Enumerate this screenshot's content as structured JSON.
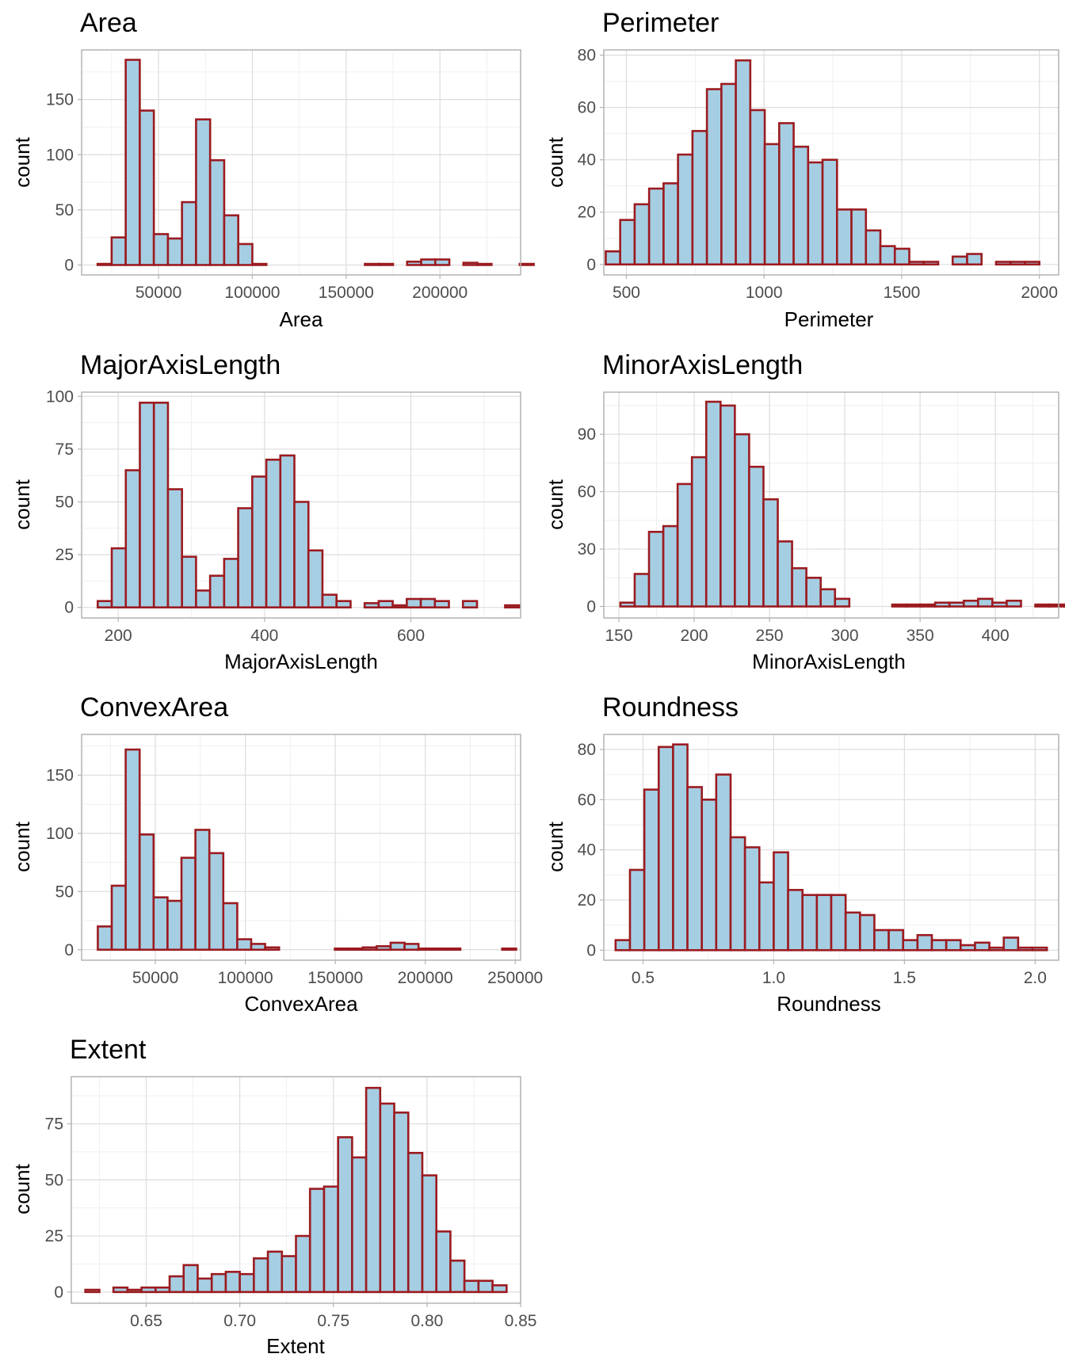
{
  "chart_data": [
    {
      "type": "bar",
      "title": "Area",
      "xlabel": "Area",
      "ylabel": "count",
      "xlim": [
        9000,
        243000
      ],
      "ylim": [
        -9,
        195
      ],
      "xticks": [
        50000,
        100000,
        150000,
        200000
      ],
      "xtick_labels": [
        "50000",
        "100000",
        "150000",
        "200000"
      ],
      "yticks": [
        0,
        50,
        100,
        150
      ],
      "ytick_labels": [
        "0",
        "50",
        "100",
        "150"
      ],
      "bin_start": 17500,
      "bin_width": 7500,
      "values": [
        1,
        25,
        186,
        140,
        28,
        24,
        57,
        132,
        95,
        45,
        19,
        1,
        0,
        0,
        0,
        0,
        0,
        0,
        0,
        1,
        1,
        0,
        3,
        5,
        5,
        0,
        2,
        1,
        0,
        0,
        1
      ]
    },
    {
      "type": "bar",
      "title": "Perimeter",
      "xlabel": "Perimeter",
      "ylabel": "count",
      "xlim": [
        418,
        2070
      ],
      "ylim": [
        -4,
        82
      ],
      "xticks": [
        500,
        1000,
        1500,
        2000
      ],
      "xtick_labels": [
        "500",
        "1000",
        "1500",
        "2000"
      ],
      "yticks": [
        0,
        20,
        40,
        60,
        80
      ],
      "ytick_labels": [
        "0",
        "20",
        "40",
        "60",
        "80"
      ],
      "bin_start": 425,
      "bin_width": 52.5,
      "values": [
        5,
        17,
        23,
        29,
        31,
        42,
        51,
        67,
        69,
        78,
        59,
        46,
        54,
        45,
        39,
        40,
        21,
        21,
        13,
        7,
        6,
        1,
        1,
        0,
        3,
        4,
        0,
        1,
        1,
        1
      ]
    },
    {
      "type": "bar",
      "title": "MajorAxisLength",
      "xlabel": "MajorAxisLength",
      "ylabel": "count",
      "xlim": [
        150,
        750
      ],
      "ylim": [
        -5,
        102
      ],
      "xticks": [
        200,
        400,
        600
      ],
      "xtick_labels": [
        "200",
        "400",
        "600"
      ],
      "yticks": [
        0,
        25,
        50,
        75,
        100
      ],
      "ytick_labels": [
        "0",
        "25",
        "50",
        "75",
        "100"
      ],
      "bin_start": 172,
      "bin_width": 19.2,
      "values": [
        3,
        28,
        65,
        97,
        97,
        56,
        24,
        8,
        15,
        23,
        47,
        62,
        70,
        72,
        50,
        27,
        6,
        3,
        0,
        2,
        3,
        1,
        4,
        4,
        3,
        0,
        3,
        0,
        0,
        1
      ]
    },
    {
      "type": "bar",
      "title": "MinorAxisLength",
      "xlabel": "MinorAxisLength",
      "ylabel": "count",
      "xlim": [
        140,
        442
      ],
      "ylim": [
        -6,
        112
      ],
      "xticks": [
        150,
        200,
        250,
        300,
        350,
        400
      ],
      "xtick_labels": [
        "150",
        "200",
        "250",
        "300",
        "350",
        "400"
      ],
      "yticks": [
        0,
        30,
        60,
        90
      ],
      "ytick_labels": [
        "0",
        "30",
        "60",
        "90"
      ],
      "bin_start": 151,
      "bin_width": 9.5,
      "values": [
        2,
        17,
        39,
        42,
        64,
        78,
        107,
        105,
        90,
        73,
        56,
        34,
        20,
        15,
        9,
        4,
        0,
        0,
        0,
        1,
        1,
        1,
        2,
        2,
        3,
        4,
        2,
        3,
        0,
        1,
        1,
        1
      ]
    },
    {
      "type": "bar",
      "title": "ConvexArea",
      "xlabel": "ConvexArea",
      "ylabel": "count",
      "xlim": [
        9000,
        253000
      ],
      "ylim": [
        -9,
        185
      ],
      "xticks": [
        50000,
        100000,
        150000,
        200000,
        250000
      ],
      "xtick_labels": [
        "50000",
        "100000",
        "150000",
        "200000",
        "250000"
      ],
      "yticks": [
        0,
        50,
        100,
        150
      ],
      "ytick_labels": [
        "0",
        "50",
        "100",
        "150"
      ],
      "bin_start": 18000,
      "bin_width": 7750,
      "values": [
        20,
        55,
        172,
        99,
        45,
        42,
        79,
        103,
        83,
        40,
        9,
        5,
        2,
        0,
        0,
        0,
        0,
        1,
        1,
        2,
        3,
        6,
        5,
        1,
        1,
        1,
        0,
        0,
        0,
        1
      ]
    },
    {
      "type": "bar",
      "title": "Roundness",
      "xlabel": "Roundness",
      "ylabel": "count",
      "xlim": [
        0.35,
        2.09
      ],
      "ylim": [
        -4,
        86
      ],
      "xticks": [
        0.5,
        1.0,
        1.5,
        2.0
      ],
      "xtick_labels": [
        "0.5",
        "1.0",
        "1.5",
        "2.0"
      ],
      "yticks": [
        0,
        20,
        40,
        60,
        80
      ],
      "ytick_labels": [
        "0",
        "20",
        "40",
        "60",
        "80"
      ],
      "bin_start": 0.395,
      "bin_width": 0.055,
      "values": [
        4,
        32,
        64,
        81,
        82,
        65,
        60,
        70,
        45,
        41,
        27,
        39,
        24,
        22,
        22,
        22,
        15,
        14,
        8,
        8,
        4,
        6,
        4,
        4,
        2,
        3,
        1,
        5,
        1,
        1
      ]
    },
    {
      "type": "bar",
      "title": "Extent",
      "xlabel": "Extent",
      "ylabel": "count",
      "xlim": [
        0.61,
        0.85
      ],
      "ylim": [
        -5,
        96
      ],
      "xticks": [
        0.65,
        0.7,
        0.75,
        0.8,
        0.85
      ],
      "xtick_labels": [
        "0.65",
        "0.70",
        "0.75",
        "0.80",
        "0.85"
      ],
      "yticks": [
        0,
        25,
        50,
        75
      ],
      "ytick_labels": [
        "0",
        "25",
        "50",
        "75"
      ],
      "bin_start": 0.6175,
      "bin_width": 0.0075,
      "values": [
        1,
        0,
        2,
        1,
        2,
        2,
        7,
        12,
        6,
        8,
        9,
        8,
        15,
        18,
        16,
        25,
        46,
        47,
        69,
        60,
        91,
        84,
        80,
        62,
        52,
        27,
        14,
        5,
        5,
        3
      ]
    }
  ],
  "colors": {
    "bar_fill": "#a6cee3",
    "bar_outline": "#9b1b20",
    "grid": "#dddddd",
    "border": "#b3b3b3"
  }
}
